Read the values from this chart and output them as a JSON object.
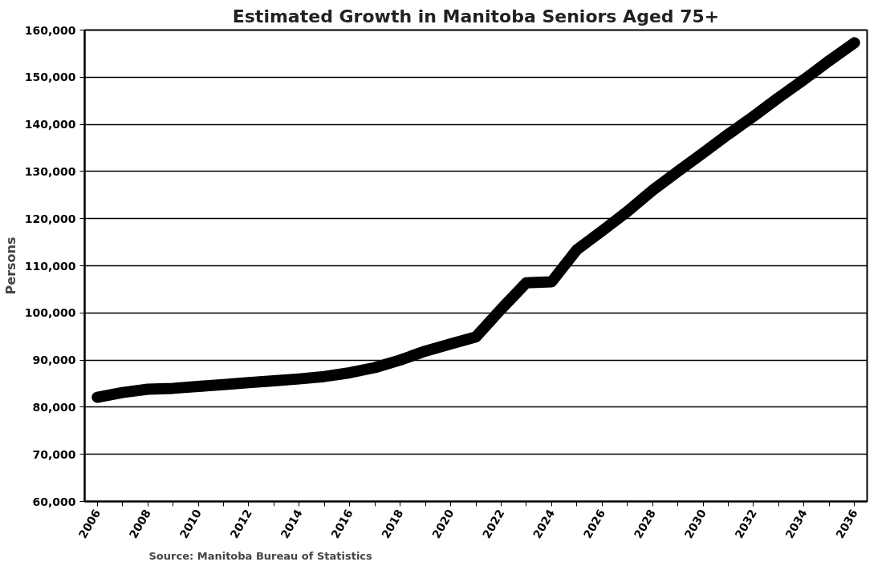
{
  "chart_data": {
    "type": "line",
    "title": "Estimated Growth in Manitoba Seniors Aged 75+",
    "ylabel": "Persons",
    "categories": [
      "2006",
      null,
      "2008",
      null,
      "2010",
      null,
      "2012",
      null,
      "2014",
      null,
      "2016",
      null,
      "2018",
      null,
      "2020",
      null,
      "2022",
      null,
      "2024",
      null,
      "2026",
      null,
      "2028",
      null,
      "2030",
      null,
      "2032",
      null,
      "2034",
      null,
      "2036"
    ],
    "series": [
      {
        "color": "#000000",
        "values": [
          82100,
          83100,
          83800,
          84000,
          84400,
          84800,
          85200,
          85600,
          86000,
          86500,
          87300,
          88400,
          90000,
          91900,
          93400,
          94900,
          100800,
          106400,
          106600,
          113400,
          117400,
          121500,
          126000,
          130000,
          133900,
          137900,
          141700,
          145700,
          149500,
          153500,
          157300
        ]
      }
    ],
    "ylim": [
      60000,
      160000
    ],
    "yticks": [
      {
        "value": 60000,
        "label": "60,000"
      },
      {
        "value": 70000,
        "label": "70,000"
      },
      {
        "value": 80000,
        "label": "80,000"
      },
      {
        "value": 90000,
        "label": "90,000"
      },
      {
        "value": 100000,
        "label": "100,000"
      },
      {
        "value": 110000,
        "label": "110,000"
      },
      {
        "value": 120000,
        "label": "120,000"
      },
      {
        "value": 130000,
        "label": "130,000"
      },
      {
        "value": 140000,
        "label": "140,000"
      },
      {
        "value": 150000,
        "label": "150,000"
      },
      {
        "value": 160000,
        "label": "160,000"
      }
    ],
    "grid": "y",
    "line_style": "solid",
    "annotations": [
      "Source:  Manitoba Bureau of Statistics"
    ]
  }
}
